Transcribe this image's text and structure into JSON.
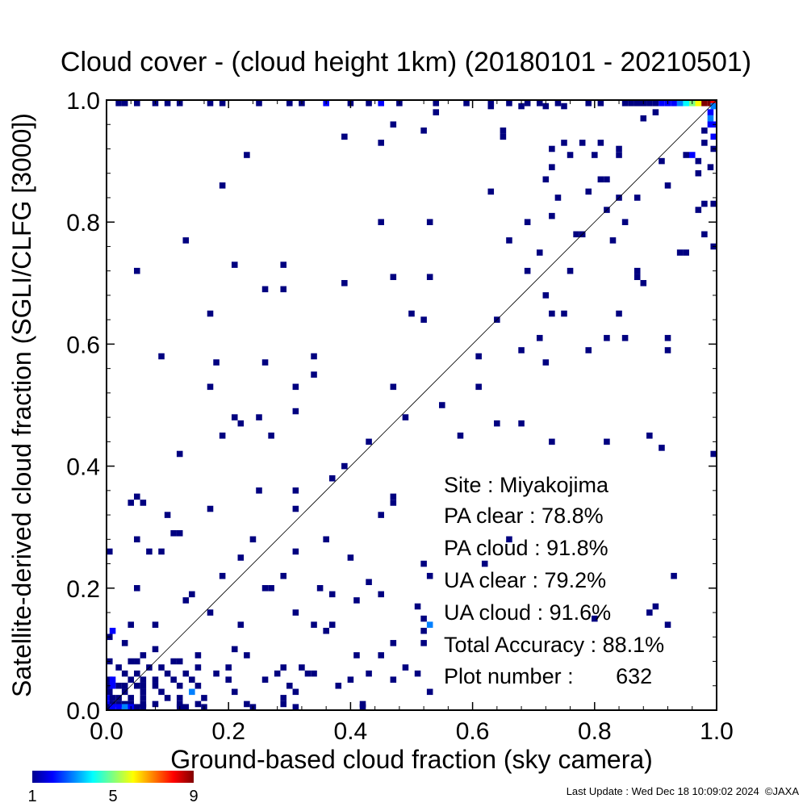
{
  "chart_data": {
    "type": "heatmap",
    "title": "Cloud cover - (cloud height 1km)  (20180101 - 20210501)",
    "xlabel": "Ground-based cloud fraction (sky camera)",
    "ylabel": "Satellite-derived cloud fraction (SGLI/CLFG [3000])",
    "xlim": [
      0,
      1
    ],
    "ylim": [
      0,
      1
    ],
    "xticks": [
      "0.0",
      "0.2",
      "0.4",
      "0.6",
      "0.8",
      "1.0"
    ],
    "yticks": [
      "0.0",
      "0.2",
      "0.4",
      "0.6",
      "0.8",
      "1.0"
    ],
    "bin_size": 0.01,
    "diagonal_line": true,
    "colorbar": {
      "min": 1,
      "max": 9,
      "ticks": [
        "1",
        "5",
        "9"
      ],
      "colormap": "jet"
    },
    "stats": {
      "site": "Site : Miyakojima",
      "pa_clear": "PA clear :  78.8%",
      "pa_cloud": "PA cloud :  91.8%",
      "ua_clear": "UA clear :  79.2%",
      "ua_cloud": "UA cloud :  91.6%",
      "total_accuracy": "Total Accuracy :  88.1%",
      "plot_number": "Plot number :       632"
    },
    "cells": [
      [
        0.99,
        1.0,
        9
      ],
      [
        0.98,
        1.0,
        9
      ],
      [
        1.0,
        1.0,
        8
      ],
      [
        0.97,
        1.0,
        6
      ],
      [
        0.96,
        1.0,
        5
      ],
      [
        0.95,
        1.0,
        4
      ],
      [
        0.94,
        1.0,
        3
      ],
      [
        0.93,
        1.0,
        2
      ],
      [
        0.92,
        1.0,
        2
      ],
      [
        0.91,
        1.0,
        2
      ],
      [
        0.9,
        1.0,
        1
      ],
      [
        0.89,
        1.0,
        1
      ],
      [
        0.88,
        1.0,
        1
      ],
      [
        0.87,
        1.0,
        1
      ],
      [
        0.86,
        1.0,
        1
      ],
      [
        0.85,
        1.0,
        1
      ],
      [
        1.0,
        0.99,
        3
      ],
      [
        0.99,
        0.98,
        2
      ],
      [
        0.99,
        0.97,
        3
      ],
      [
        1.0,
        0.96,
        2
      ],
      [
        0.99,
        0.96,
        2
      ],
      [
        0.98,
        0.95,
        1
      ],
      [
        1.0,
        0.94,
        2
      ],
      [
        0.98,
        0.93,
        1
      ],
      [
        1.0,
        0.92,
        1
      ],
      [
        0.96,
        0.91,
        2
      ],
      [
        0.95,
        0.91,
        1
      ],
      [
        0.97,
        0.9,
        1
      ],
      [
        0.99,
        0.89,
        1
      ],
      [
        0.97,
        0.88,
        1
      ],
      [
        0.02,
        1.0,
        1
      ],
      [
        0.03,
        1.0,
        1
      ],
      [
        0.05,
        1.0,
        1
      ],
      [
        0.08,
        1.0,
        1
      ],
      [
        0.1,
        1.0,
        1
      ],
      [
        0.12,
        1.0,
        1
      ],
      [
        0.17,
        1.0,
        1
      ],
      [
        0.19,
        1.0,
        1
      ],
      [
        0.25,
        1.0,
        1
      ],
      [
        0.3,
        1.0,
        1
      ],
      [
        0.32,
        1.0,
        1
      ],
      [
        0.36,
        1.0,
        2
      ],
      [
        0.4,
        1.0,
        1
      ],
      [
        0.43,
        1.0,
        1
      ],
      [
        0.45,
        1.0,
        2
      ],
      [
        0.48,
        1.0,
        1
      ],
      [
        0.54,
        1.0,
        1
      ],
      [
        0.59,
        1.0,
        1
      ],
      [
        0.63,
        1.0,
        1
      ],
      [
        0.66,
        1.0,
        1
      ],
      [
        0.69,
        1.0,
        1
      ],
      [
        0.71,
        1.0,
        1
      ],
      [
        0.74,
        1.0,
        1
      ],
      [
        0.79,
        1.0,
        1
      ],
      [
        0.81,
        1.0,
        1
      ],
      [
        0.63,
        0.99,
        1
      ],
      [
        0.68,
        0.99,
        1
      ],
      [
        0.72,
        0.99,
        1
      ],
      [
        0.75,
        0.99,
        1
      ],
      [
        0.54,
        0.98,
        1
      ],
      [
        0.88,
        0.97,
        1
      ],
      [
        0.9,
        0.98,
        1
      ],
      [
        0.47,
        0.96,
        1
      ],
      [
        0.52,
        0.95,
        1
      ],
      [
        0.65,
        0.95,
        1
      ],
      [
        0.39,
        0.94,
        1
      ],
      [
        0.65,
        0.94,
        1
      ],
      [
        0.45,
        0.93,
        1
      ],
      [
        0.75,
        0.93,
        1
      ],
      [
        0.78,
        0.93,
        1
      ],
      [
        0.81,
        0.93,
        1
      ],
      [
        0.73,
        0.92,
        1
      ],
      [
        0.84,
        0.92,
        1
      ],
      [
        0.23,
        0.91,
        1
      ],
      [
        0.76,
        0.91,
        1
      ],
      [
        0.8,
        0.91,
        1
      ],
      [
        0.84,
        0.91,
        1
      ],
      [
        0.73,
        0.89,
        1
      ],
      [
        0.91,
        0.9,
        1
      ],
      [
        0.72,
        0.87,
        1
      ],
      [
        0.81,
        0.87,
        1
      ],
      [
        0.82,
        0.87,
        1
      ],
      [
        0.19,
        0.86,
        1
      ],
      [
        0.92,
        0.86,
        1
      ],
      [
        0.63,
        0.85,
        1
      ],
      [
        0.79,
        0.85,
        1
      ],
      [
        0.74,
        0.84,
        1
      ],
      [
        0.84,
        0.84,
        1
      ],
      [
        0.87,
        0.84,
        1
      ],
      [
        0.98,
        0.83,
        1
      ],
      [
        0.97,
        0.82,
        1
      ],
      [
        0.82,
        0.82,
        1
      ],
      [
        1.0,
        0.83,
        1
      ],
      [
        0.45,
        0.8,
        1
      ],
      [
        0.53,
        0.8,
        1
      ],
      [
        0.69,
        0.8,
        1
      ],
      [
        0.73,
        0.81,
        1
      ],
      [
        0.85,
        0.8,
        1
      ],
      [
        0.77,
        0.78,
        1
      ],
      [
        0.78,
        0.78,
        1
      ],
      [
        0.13,
        0.77,
        1
      ],
      [
        0.66,
        0.77,
        1
      ],
      [
        0.83,
        0.77,
        1
      ],
      [
        0.98,
        0.78,
        1
      ],
      [
        1.0,
        0.76,
        1
      ],
      [
        0.71,
        0.75,
        1
      ],
      [
        0.94,
        0.75,
        1
      ],
      [
        0.95,
        0.75,
        1
      ],
      [
        0.05,
        0.72,
        1
      ],
      [
        0.21,
        0.73,
        1
      ],
      [
        0.29,
        0.73,
        1
      ],
      [
        0.69,
        0.72,
        1
      ],
      [
        0.76,
        0.72,
        1
      ],
      [
        0.87,
        0.72,
        1
      ],
      [
        0.47,
        0.71,
        1
      ],
      [
        0.53,
        0.71,
        1
      ],
      [
        0.26,
        0.69,
        1
      ],
      [
        0.29,
        0.69,
        1
      ],
      [
        0.39,
        0.7,
        1
      ],
      [
        0.88,
        0.7,
        1
      ],
      [
        0.87,
        0.71,
        1
      ],
      [
        0.73,
        0.65,
        1
      ],
      [
        0.75,
        0.65,
        1
      ],
      [
        0.72,
        0.68,
        1
      ],
      [
        0.84,
        0.65,
        1
      ],
      [
        0.17,
        0.65,
        1
      ],
      [
        0.5,
        0.65,
        1
      ],
      [
        0.52,
        0.64,
        1
      ],
      [
        0.64,
        0.64,
        1
      ],
      [
        0.71,
        0.61,
        1
      ],
      [
        0.82,
        0.61,
        1
      ],
      [
        0.85,
        0.61,
        1
      ],
      [
        0.92,
        0.61,
        1
      ],
      [
        0.09,
        0.58,
        1
      ],
      [
        0.18,
        0.57,
        1
      ],
      [
        0.26,
        0.57,
        1
      ],
      [
        0.34,
        0.58,
        1
      ],
      [
        0.61,
        0.58,
        1
      ],
      [
        0.68,
        0.59,
        1
      ],
      [
        0.72,
        0.57,
        1
      ],
      [
        0.79,
        0.59,
        1
      ],
      [
        0.92,
        0.59,
        1
      ],
      [
        0.17,
        0.53,
        1
      ],
      [
        0.31,
        0.53,
        1
      ],
      [
        0.34,
        0.55,
        1
      ],
      [
        0.47,
        0.53,
        1
      ],
      [
        0.61,
        0.53,
        1
      ],
      [
        0.55,
        0.5,
        1
      ],
      [
        0.31,
        0.49,
        1
      ],
      [
        0.21,
        0.48,
        1
      ],
      [
        0.22,
        0.47,
        1
      ],
      [
        0.25,
        0.48,
        1
      ],
      [
        0.49,
        0.48,
        1
      ],
      [
        0.64,
        0.47,
        1
      ],
      [
        0.68,
        0.47,
        1
      ],
      [
        0.19,
        0.45,
        1
      ],
      [
        0.27,
        0.45,
        1
      ],
      [
        0.58,
        0.45,
        1
      ],
      [
        0.73,
        0.44,
        1
      ],
      [
        0.82,
        0.44,
        1
      ],
      [
        0.89,
        0.45,
        1
      ],
      [
        0.91,
        0.43,
        1
      ],
      [
        1.0,
        0.42,
        1
      ],
      [
        0.43,
        0.44,
        1
      ],
      [
        0.12,
        0.42,
        1
      ],
      [
        0.39,
        0.4,
        1
      ],
      [
        0.37,
        0.38,
        1
      ],
      [
        0.05,
        0.35,
        1
      ],
      [
        0.04,
        0.34,
        1
      ],
      [
        0.06,
        0.34,
        1
      ],
      [
        0.25,
        0.36,
        1
      ],
      [
        0.31,
        0.36,
        1
      ],
      [
        0.47,
        0.35,
        1
      ],
      [
        0.47,
        0.34,
        1
      ],
      [
        0.1,
        0.32,
        1
      ],
      [
        0.17,
        0.33,
        1
      ],
      [
        0.31,
        0.33,
        1
      ],
      [
        0.45,
        0.32,
        1
      ],
      [
        0.11,
        0.29,
        1
      ],
      [
        0.12,
        0.29,
        1
      ],
      [
        0.05,
        0.28,
        1
      ],
      [
        0.24,
        0.28,
        1
      ],
      [
        0.36,
        0.28,
        1
      ],
      [
        0.66,
        0.28,
        1
      ],
      [
        0.0,
        0.26,
        1
      ],
      [
        0.07,
        0.26,
        1
      ],
      [
        0.09,
        0.26,
        1
      ],
      [
        0.31,
        0.26,
        1
      ],
      [
        0.22,
        0.25,
        1
      ],
      [
        0.4,
        0.25,
        1
      ],
      [
        0.52,
        0.24,
        1
      ],
      [
        0.62,
        0.24,
        1
      ],
      [
        0.19,
        0.22,
        1
      ],
      [
        0.29,
        0.22,
        1
      ],
      [
        0.53,
        0.22,
        1
      ],
      [
        0.93,
        0.22,
        1
      ],
      [
        0.05,
        0.2,
        1
      ],
      [
        0.26,
        0.2,
        1
      ],
      [
        0.35,
        0.2,
        1
      ],
      [
        0.43,
        0.21,
        1
      ],
      [
        0.14,
        0.19,
        1
      ],
      [
        0.13,
        0.18,
        1
      ],
      [
        0.17,
        0.16,
        1
      ],
      [
        0.27,
        0.2,
        1
      ],
      [
        0.37,
        0.19,
        1
      ],
      [
        0.41,
        0.18,
        1
      ],
      [
        0.45,
        0.19,
        1
      ],
      [
        0.51,
        0.17,
        1
      ],
      [
        0.9,
        0.17,
        1
      ],
      [
        0.52,
        0.15,
        1
      ],
      [
        0.31,
        0.16,
        1
      ],
      [
        0.8,
        0.15,
        1
      ],
      [
        0.89,
        0.16,
        1
      ],
      [
        0.0,
        0.12,
        1
      ],
      [
        0.01,
        0.13,
        2
      ],
      [
        0.08,
        0.14,
        1
      ],
      [
        0.04,
        0.14,
        1
      ],
      [
        0.22,
        0.14,
        1
      ],
      [
        0.34,
        0.14,
        1
      ],
      [
        0.36,
        0.13,
        1
      ],
      [
        0.37,
        0.14,
        1
      ],
      [
        0.53,
        0.14,
        3
      ],
      [
        0.52,
        0.13,
        1
      ],
      [
        0.92,
        0.14,
        1
      ],
      [
        0.47,
        0.11,
        1
      ],
      [
        0.41,
        0.09,
        1
      ],
      [
        0.52,
        0.11,
        1
      ],
      [
        0.03,
        0.11,
        1
      ],
      [
        0.04,
        0.08,
        1
      ],
      [
        0.06,
        0.09,
        1
      ],
      [
        0.08,
        0.1,
        1
      ],
      [
        0.15,
        0.09,
        1
      ],
      [
        0.21,
        0.1,
        1
      ],
      [
        0.23,
        0.09,
        1
      ],
      [
        0.45,
        0.09,
        1
      ],
      [
        0.0,
        0.08,
        1
      ],
      [
        0.05,
        0.08,
        1
      ],
      [
        0.07,
        0.07,
        1
      ],
      [
        0.11,
        0.08,
        1
      ],
      [
        0.12,
        0.08,
        1
      ],
      [
        0.02,
        0.07,
        1
      ],
      [
        0.09,
        0.07,
        1
      ],
      [
        0.13,
        0.06,
        1
      ],
      [
        0.15,
        0.07,
        1
      ],
      [
        0.2,
        0.07,
        1
      ],
      [
        0.29,
        0.07,
        1
      ],
      [
        0.32,
        0.07,
        1
      ],
      [
        0.43,
        0.06,
        1
      ],
      [
        0.49,
        0.07,
        1
      ],
      [
        0.51,
        0.06,
        1
      ],
      [
        0.03,
        0.06,
        1
      ],
      [
        0.05,
        0.06,
        1
      ],
      [
        0.08,
        0.05,
        1
      ],
      [
        0.1,
        0.06,
        1
      ],
      [
        0.14,
        0.05,
        1
      ],
      [
        0.18,
        0.06,
        1
      ],
      [
        0.2,
        0.05,
        1
      ],
      [
        0.26,
        0.05,
        1
      ],
      [
        0.28,
        0.06,
        1
      ],
      [
        0.3,
        0.04,
        1
      ],
      [
        0.33,
        0.06,
        1
      ],
      [
        0.34,
        0.06,
        1
      ],
      [
        0.38,
        0.04,
        1
      ],
      [
        0.4,
        0.05,
        1
      ],
      [
        0.47,
        0.05,
        1
      ],
      [
        0.0,
        0.05,
        1
      ],
      [
        0.01,
        0.05,
        2
      ],
      [
        0.04,
        0.05,
        1
      ],
      [
        0.06,
        0.05,
        1
      ],
      [
        0.11,
        0.05,
        1
      ],
      [
        0.0,
        0.04,
        1
      ],
      [
        0.01,
        0.04,
        2
      ],
      [
        0.02,
        0.04,
        1
      ],
      [
        0.03,
        0.04,
        1
      ],
      [
        0.05,
        0.04,
        1
      ],
      [
        0.06,
        0.04,
        1
      ],
      [
        0.08,
        0.04,
        1
      ],
      [
        0.12,
        0.04,
        1
      ],
      [
        0.15,
        0.04,
        1
      ],
      [
        0.0,
        0.03,
        1
      ],
      [
        0.03,
        0.03,
        1
      ],
      [
        0.06,
        0.03,
        1
      ],
      [
        0.09,
        0.03,
        1
      ],
      [
        0.14,
        0.03,
        3
      ],
      [
        0.21,
        0.03,
        1
      ],
      [
        0.31,
        0.03,
        1
      ],
      [
        0.53,
        0.03,
        1
      ],
      [
        0.0,
        0.02,
        2
      ],
      [
        0.01,
        0.02,
        1
      ],
      [
        0.02,
        0.02,
        1
      ],
      [
        0.04,
        0.02,
        1
      ],
      [
        0.06,
        0.02,
        1
      ],
      [
        0.1,
        0.02,
        1
      ],
      [
        0.12,
        0.02,
        1
      ],
      [
        0.16,
        0.02,
        1
      ],
      [
        0.29,
        0.02,
        1
      ],
      [
        0.0,
        0.01,
        2
      ],
      [
        0.01,
        0.01,
        1
      ],
      [
        0.02,
        0.01,
        1
      ],
      [
        0.03,
        0.01,
        1
      ],
      [
        0.04,
        0.01,
        1
      ],
      [
        0.06,
        0.01,
        1
      ],
      [
        0.08,
        0.01,
        1
      ],
      [
        0.12,
        0.01,
        1
      ],
      [
        0.15,
        0.01,
        1
      ],
      [
        0.23,
        0.01,
        1
      ],
      [
        0.29,
        0.01,
        1
      ],
      [
        0.42,
        0.01,
        1
      ],
      [
        0.0,
        0.0,
        1
      ],
      [
        0.01,
        0.0,
        2
      ],
      [
        0.02,
        0.0,
        2
      ],
      [
        0.03,
        0.0,
        3
      ],
      [
        0.04,
        0.0,
        2
      ],
      [
        0.05,
        0.0,
        1
      ],
      [
        0.06,
        0.0,
        1
      ],
      [
        0.12,
        0.0,
        1
      ],
      [
        0.13,
        0.0,
        1
      ],
      [
        0.16,
        0.0,
        1
      ],
      [
        0.24,
        0.0,
        1
      ],
      [
        0.31,
        0.0,
        1
      ],
      [
        0.42,
        0.0,
        1
      ]
    ]
  },
  "footer": {
    "last_update": "Last Update : Wed Dec 18 10:09:02 2024  ©JAXA"
  }
}
